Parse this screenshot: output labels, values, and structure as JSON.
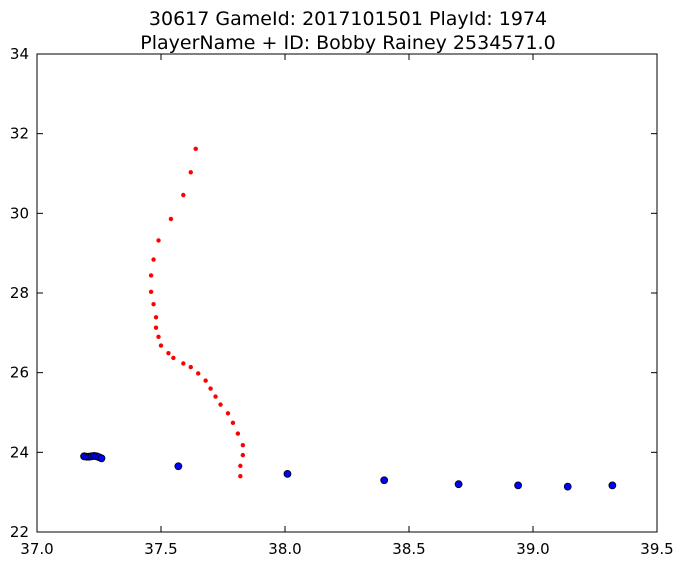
{
  "chart_data": {
    "type": "scatter",
    "title": [
      "30617 GameId: 2017101501 PlayId: 1974",
      "PlayerName + ID: Bobby Rainey 2534571.0"
    ],
    "xlabel": "",
    "ylabel": "",
    "xlim": [
      37.0,
      39.5
    ],
    "ylim": [
      22,
      34
    ],
    "xticks": [
      "37.0",
      "37.5",
      "38.0",
      "38.5",
      "39.0",
      "39.5"
    ],
    "yticks": [
      "22",
      "24",
      "26",
      "28",
      "30",
      "32",
      "34"
    ],
    "grid": false,
    "legend": "none",
    "series": [
      {
        "color": "#ff0000",
        "marker": "small-dot",
        "points": [
          [
            37.64,
            31.62
          ],
          [
            37.62,
            31.03
          ],
          [
            37.59,
            30.46
          ],
          [
            37.54,
            29.86
          ],
          [
            37.49,
            29.32
          ],
          [
            37.47,
            28.84
          ],
          [
            37.46,
            28.44
          ],
          [
            37.46,
            28.03
          ],
          [
            37.47,
            27.72
          ],
          [
            37.48,
            27.39
          ],
          [
            37.48,
            27.13
          ],
          [
            37.49,
            26.9
          ],
          [
            37.5,
            26.68
          ],
          [
            37.53,
            26.49
          ],
          [
            37.55,
            26.37
          ],
          [
            37.59,
            26.23
          ],
          [
            37.62,
            26.14
          ],
          [
            37.65,
            25.98
          ],
          [
            37.68,
            25.8
          ],
          [
            37.7,
            25.6
          ],
          [
            37.72,
            25.4
          ],
          [
            37.74,
            25.2
          ],
          [
            37.77,
            24.98
          ],
          [
            37.79,
            24.74
          ],
          [
            37.81,
            24.47
          ],
          [
            37.83,
            24.18
          ],
          [
            37.83,
            23.93
          ],
          [
            37.82,
            23.66
          ],
          [
            37.82,
            23.4
          ]
        ]
      },
      {
        "color": "#0000ff",
        "marker": "circle",
        "points": [
          [
            37.19,
            23.9
          ],
          [
            37.2,
            23.89
          ],
          [
            37.21,
            23.89
          ],
          [
            37.22,
            23.9
          ],
          [
            37.23,
            23.91
          ],
          [
            37.24,
            23.9
          ],
          [
            37.25,
            23.88
          ],
          [
            37.26,
            23.85
          ],
          [
            37.57,
            23.65
          ],
          [
            38.01,
            23.46
          ],
          [
            38.4,
            23.3
          ],
          [
            38.7,
            23.2
          ],
          [
            38.94,
            23.17
          ],
          [
            39.14,
            23.14
          ],
          [
            39.32,
            23.17
          ]
        ]
      }
    ]
  }
}
